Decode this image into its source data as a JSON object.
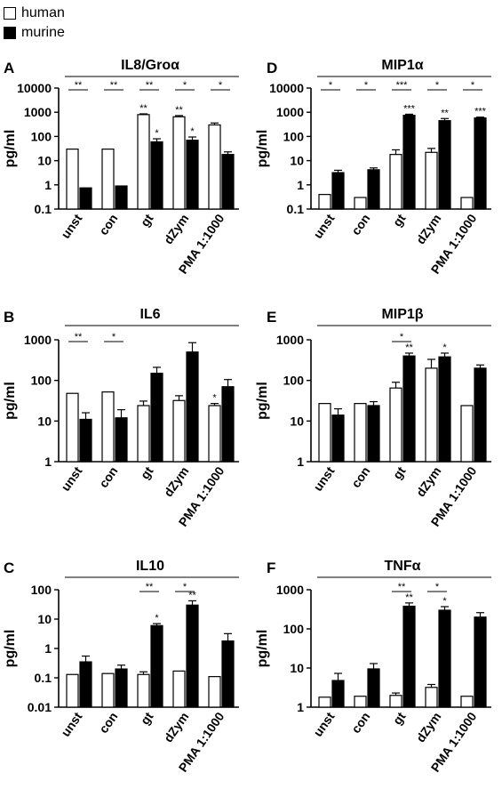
{
  "legend": {
    "items": [
      {
        "label": "human",
        "color": "#ffffff"
      },
      {
        "label": "murine",
        "color": "#000000"
      }
    ]
  },
  "colors": {
    "human": "#ffffff",
    "murine": "#000000",
    "stroke": "#000000"
  },
  "chart_data": [
    {
      "panel": "A",
      "title": "IL8/Groα",
      "type": "bar",
      "ylabel": "pg/ml",
      "scale": "log",
      "ylim": [
        0.1,
        10000
      ],
      "yticks": [
        "0.1",
        "1",
        "10",
        "100",
        "1000",
        "10000"
      ],
      "categories": [
        "unst",
        "con",
        "gt",
        "dZym",
        "PMA 1:1000"
      ],
      "series": [
        {
          "name": "human",
          "values": [
            30,
            30,
            800,
            650,
            300
          ],
          "errors": [
            0,
            0,
            60,
            80,
            60
          ]
        },
        {
          "name": "murine",
          "values": [
            0.75,
            0.9,
            60,
            70,
            18
          ],
          "errors": [
            0,
            0,
            20,
            25,
            5
          ]
        }
      ],
      "bar_stars": [
        [
          "",
          "",
          "**",
          "**",
          ""
        ],
        [
          "",
          "",
          "*",
          "*",
          ""
        ]
      ],
      "comparisons": [
        {
          "from": 0,
          "to": 0,
          "label": "**"
        },
        {
          "from": 1,
          "to": 1,
          "label": "**"
        },
        {
          "from": 2,
          "to": 2,
          "label": "**"
        },
        {
          "from": 3,
          "to": 3,
          "label": "*"
        },
        {
          "from": 4,
          "to": 4,
          "label": "*"
        }
      ]
    },
    {
      "panel": "B",
      "title": "IL6",
      "type": "bar",
      "ylabel": "pg/ml",
      "scale": "log",
      "ylim": [
        1,
        1000
      ],
      "yticks": [
        "1",
        "10",
        "100",
        "1000"
      ],
      "categories": [
        "unst",
        "con",
        "gt",
        "dZym",
        "PMA 1:1000"
      ],
      "series": [
        {
          "name": "human",
          "values": [
            48,
            52,
            24,
            32,
            24
          ],
          "errors": [
            0,
            0,
            7,
            10,
            3
          ]
        },
        {
          "name": "murine",
          "values": [
            11,
            12,
            150,
            500,
            70
          ],
          "errors": [
            5,
            7,
            60,
            350,
            35
          ]
        }
      ],
      "bar_stars": [
        [
          "",
          "",
          "",
          "",
          "*"
        ],
        [
          "",
          "",
          "",
          "",
          ""
        ]
      ],
      "comparisons": [
        {
          "from": 0,
          "to": 0,
          "label": "**"
        },
        {
          "from": 1,
          "to": 1,
          "label": "*"
        }
      ]
    },
    {
      "panel": "C",
      "title": "IL10",
      "type": "bar",
      "ylabel": "pg/ml",
      "scale": "log",
      "ylim": [
        0.01,
        100
      ],
      "yticks": [
        "0.01",
        "0.1",
        "1",
        "10",
        "100"
      ],
      "categories": [
        "unst",
        "con",
        "gt",
        "dZym",
        "PMA 1:1000"
      ],
      "series": [
        {
          "name": "human",
          "values": [
            0.13,
            0.14,
            0.13,
            0.17,
            0.11
          ],
          "errors": [
            0,
            0,
            0.03,
            0,
            0
          ]
        },
        {
          "name": "murine",
          "values": [
            0.35,
            0.2,
            6,
            30,
            1.8
          ],
          "errors": [
            0.2,
            0.07,
            1,
            12,
            1.4
          ]
        }
      ],
      "bar_stars": [
        [
          "",
          "",
          "",
          "",
          ""
        ],
        [
          "",
          "",
          "*",
          "**",
          ""
        ]
      ],
      "comparisons": [
        {
          "from": 2,
          "to": 2,
          "label": "**"
        },
        {
          "from": 3,
          "to": 3,
          "label": "*"
        }
      ]
    },
    {
      "panel": "D",
      "title": "MIP1α",
      "type": "bar",
      "ylabel": "pg/ml",
      "scale": "log",
      "ylim": [
        0.1,
        10000
      ],
      "yticks": [
        "0.1",
        "1",
        "10",
        "100",
        "1000",
        "10000"
      ],
      "categories": [
        "unst",
        "con",
        "gt",
        "dZym",
        "PMA 1:1000"
      ],
      "series": [
        {
          "name": "human",
          "values": [
            0.4,
            0.3,
            18,
            22,
            0.3
          ],
          "errors": [
            0,
            0,
            10,
            10,
            0
          ]
        },
        {
          "name": "murine",
          "values": [
            3.2,
            4.2,
            750,
            450,
            580
          ],
          "errors": [
            0.8,
            0.8,
            80,
            100,
            50
          ]
        }
      ],
      "bar_stars": [
        [
          "",
          "",
          "",
          "",
          ""
        ],
        [
          "",
          "",
          "***",
          "**",
          "***"
        ]
      ],
      "comparisons": [
        {
          "from": 0,
          "to": 0,
          "label": "*"
        },
        {
          "from": 1,
          "to": 1,
          "label": "*"
        },
        {
          "from": 2,
          "to": 2,
          "label": "***"
        },
        {
          "from": 3,
          "to": 3,
          "label": "*"
        },
        {
          "from": 4,
          "to": 4,
          "label": "*"
        }
      ]
    },
    {
      "panel": "E",
      "title": "MIP1β",
      "type": "bar",
      "ylabel": "pg/ml",
      "scale": "log",
      "ylim": [
        1,
        1000
      ],
      "yticks": [
        "1",
        "10",
        "100",
        "1000"
      ],
      "categories": [
        "unst",
        "con",
        "gt",
        "dZym",
        "PMA 1:1000"
      ],
      "series": [
        {
          "name": "human",
          "values": [
            27,
            27,
            65,
            200,
            24
          ],
          "errors": [
            0,
            0,
            25,
            130,
            0
          ]
        },
        {
          "name": "murine",
          "values": [
            14,
            24,
            400,
            380,
            200
          ],
          "errors": [
            6,
            6,
            70,
            90,
            40
          ]
        }
      ],
      "bar_stars": [
        [
          "",
          "",
          "",
          "",
          ""
        ],
        [
          "",
          "",
          "**",
          "*",
          ""
        ]
      ],
      "comparisons": [
        {
          "from": 2,
          "to": 2,
          "label": "*"
        }
      ]
    },
    {
      "panel": "F",
      "title": "TNFα",
      "type": "bar",
      "ylabel": "pg/ml",
      "scale": "log",
      "ylim": [
        1,
        1000
      ],
      "yticks": [
        "1",
        "10",
        "100",
        "1000"
      ],
      "categories": [
        "unst",
        "con",
        "gt",
        "dZym",
        "PMA 1:1000"
      ],
      "series": [
        {
          "name": "human",
          "values": [
            1.8,
            1.9,
            2.0,
            3.2,
            1.9
          ],
          "errors": [
            0,
            0,
            0.3,
            0.6,
            0
          ]
        },
        {
          "name": "murine",
          "values": [
            4.8,
            9.5,
            380,
            300,
            200
          ],
          "errors": [
            2.5,
            3.5,
            80,
            70,
            60
          ]
        }
      ],
      "bar_stars": [
        [
          "",
          "",
          "",
          "",
          ""
        ],
        [
          "",
          "",
          "**",
          "*",
          ""
        ]
      ],
      "comparisons": [
        {
          "from": 2,
          "to": 2,
          "label": "**"
        },
        {
          "from": 3,
          "to": 3,
          "label": "*"
        }
      ]
    }
  ]
}
